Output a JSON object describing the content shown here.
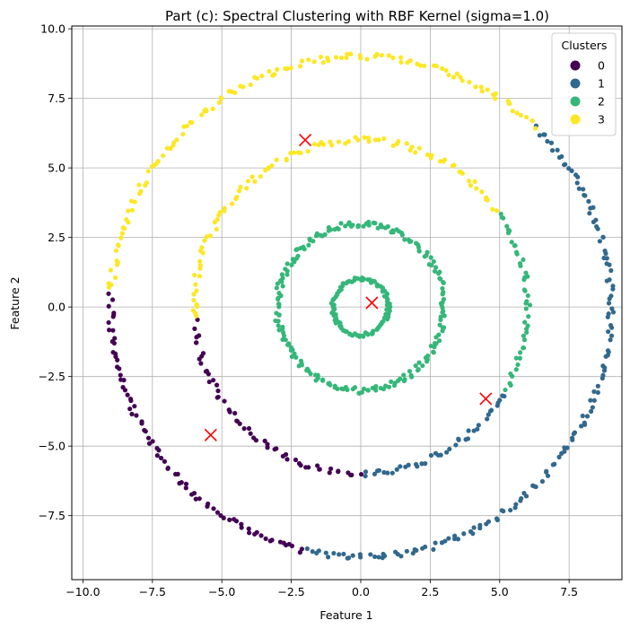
{
  "chart_data": {
    "type": "scatter",
    "title": "Part (c): Spectral Clustering with RBF Kernel (sigma=1.0)",
    "xlabel": "Feature 1",
    "ylabel": "Feature 2",
    "xlim": [
      -10.4,
      9.4
    ],
    "ylim": [
      -9.8,
      10.1
    ],
    "xticks": [
      -10.0,
      -7.5,
      -5.0,
      -2.5,
      0.0,
      2.5,
      5.0,
      7.5
    ],
    "yticks": [
      -7.5,
      -5.0,
      -2.5,
      0.0,
      2.5,
      5.0,
      7.5,
      10.0
    ],
    "xtick_labels": [
      "−10.0",
      "−7.5",
      "−5.0",
      "−2.5",
      "0.0",
      "2.5",
      "5.0",
      "7.5"
    ],
    "ytick_labels": [
      "−7.5",
      "−5.0",
      "−2.5",
      "0.0",
      "2.5",
      "5.0",
      "7.5",
      "10.0"
    ],
    "grid": true,
    "legend": {
      "title": "Clusters",
      "placement": "top-right"
    },
    "series": [
      {
        "name": "0",
        "color": "#440154",
        "arcs": [
          {
            "r": 6.0,
            "from_deg": 185,
            "to_deg": 270,
            "count": 55
          },
          {
            "r": 9.0,
            "from_deg": 177,
            "to_deg": 257,
            "count": 80
          }
        ]
      },
      {
        "name": "1",
        "color": "#31688e",
        "arcs": [
          {
            "r": 6.0,
            "from_deg": 270,
            "to_deg": 330,
            "count": 40
          },
          {
            "r": 9.0,
            "from_deg": 257,
            "to_deg": 406,
            "count": 150
          }
        ]
      },
      {
        "name": "2",
        "color": "#35b779",
        "arcs": [
          {
            "r": 1.0,
            "from_deg": 0,
            "to_deg": 360,
            "count": 100
          },
          {
            "r": 3.0,
            "from_deg": 0,
            "to_deg": 360,
            "count": 200
          },
          {
            "r": 6.0,
            "from_deg": -30,
            "to_deg": 35,
            "count": 45
          }
        ]
      },
      {
        "name": "3",
        "color": "#fde725",
        "arcs": [
          {
            "r": 6.0,
            "from_deg": 35,
            "to_deg": 185,
            "count": 95
          },
          {
            "r": 9.0,
            "from_deg": 46,
            "to_deg": 177,
            "count": 120
          }
        ]
      }
    ],
    "centroids": {
      "color": "#ff0000",
      "marker": "x",
      "points": [
        {
          "x": -5.4,
          "y": -4.6
        },
        {
          "x": 4.5,
          "y": -3.3
        },
        {
          "x": 0.4,
          "y": 0.15
        },
        {
          "x": -2.0,
          "y": 6.0
        }
      ]
    }
  }
}
